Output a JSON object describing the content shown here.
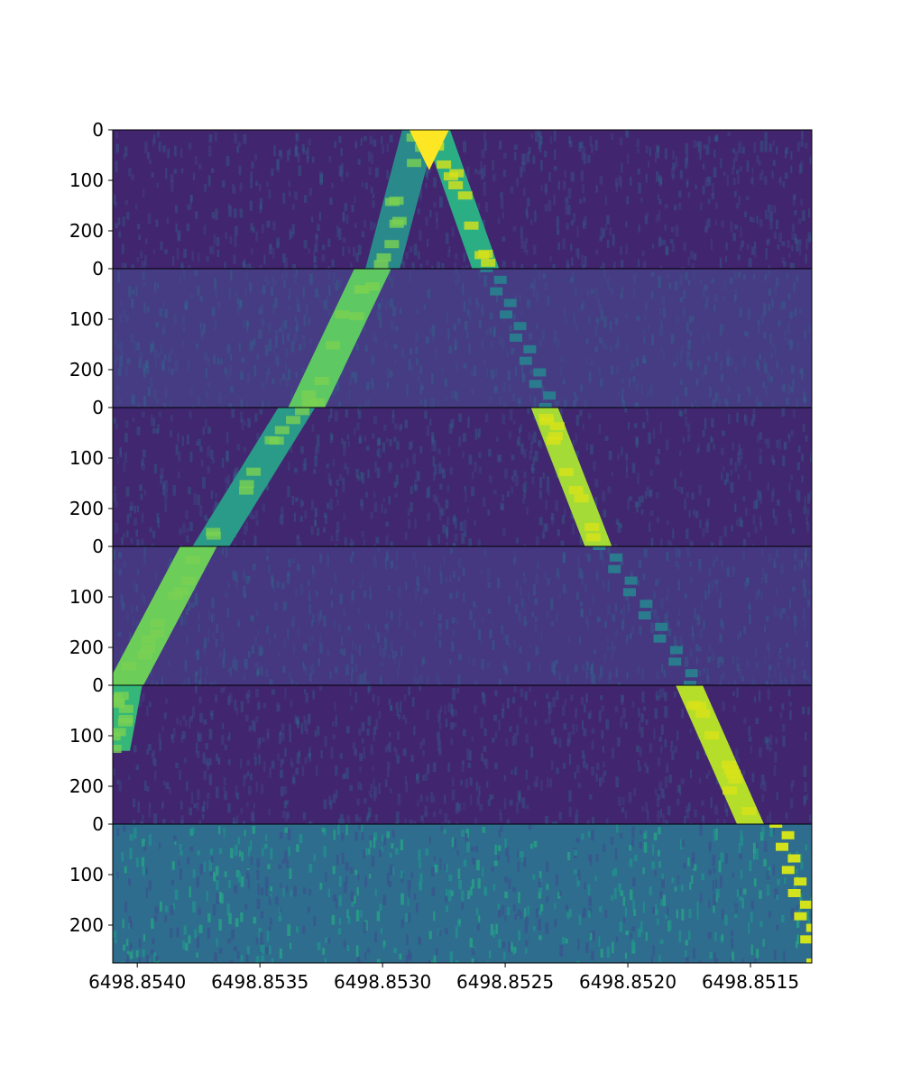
{
  "chart_data": {
    "type": "heatmap",
    "title": "",
    "xlabel": "",
    "ylabel": "",
    "x_axis": {
      "range": [
        6498.8541,
        6498.85125
      ],
      "inverted": true,
      "ticks": [
        6498.854,
        6498.8535,
        6498.853,
        6498.8525,
        6498.852,
        6498.8515
      ],
      "tick_labels": [
        "6498.8540",
        "6498.8535",
        "6498.8530",
        "6498.8525",
        "6498.8520",
        "6498.8515"
      ]
    },
    "panels": [
      {
        "y_range": [
          0,
          275
        ],
        "y_ticks": [
          0,
          100,
          200
        ],
        "y_tick_labels": [
          "0",
          "100",
          "200"
        ],
        "background": "#42256f"
      },
      {
        "y_range": [
          0,
          275
        ],
        "y_ticks": [
          0,
          100,
          200
        ],
        "y_tick_labels": [
          "0",
          "100",
          "200"
        ],
        "background": "#463c83"
      },
      {
        "y_range": [
          0,
          275
        ],
        "y_ticks": [
          0,
          100,
          200
        ],
        "y_tick_labels": [
          "0",
          "100",
          "200"
        ],
        "background": "#41276f"
      },
      {
        "y_range": [
          0,
          275
        ],
        "y_ticks": [
          0,
          100,
          200
        ],
        "y_tick_labels": [
          "0",
          "100",
          "200"
        ],
        "background": "#453780"
      },
      {
        "y_range": [
          0,
          275
        ],
        "y_ticks": [
          0,
          100,
          200
        ],
        "y_tick_labels": [
          "0",
          "100",
          "200"
        ],
        "background": "#42256f"
      },
      {
        "y_range": [
          0,
          275
        ],
        "y_ticks": [
          0,
          100,
          200
        ],
        "y_tick_labels": [
          "0",
          "100",
          "200"
        ],
        "background": "#2e6d8e"
      }
    ],
    "colormap": "viridis",
    "colors": {
      "low": "#440154",
      "mid": "#21918c",
      "high": "#fde725"
    },
    "tracks": [
      {
        "segments": [
          {
            "panel": 0,
            "x_start": 6498.85285,
            "x_end": 6498.853,
            "y_start": 0,
            "y_end": 275,
            "width": 0.00014,
            "color": "#2a8a8b"
          },
          {
            "panel": 1,
            "x_start": 6498.85304,
            "x_end": 6498.85331,
            "y_start": 0,
            "y_end": 275,
            "width": 0.00015,
            "color": "#5ec962"
          },
          {
            "panel": 2,
            "x_start": 6498.85335,
            "x_end": 6498.8537,
            "y_start": 0,
            "y_end": 275,
            "width": 0.00015,
            "color": "#2a9a89"
          },
          {
            "panel": 3,
            "x_start": 6498.85375,
            "x_end": 6498.85405,
            "y_start": 0,
            "y_end": 275,
            "width": 0.00015,
            "color": "#6cce59"
          },
          {
            "panel": 4,
            "x_start": 6498.85405,
            "x_end": 6498.8541,
            "y_start": 0,
            "y_end": 130,
            "width": 0.00014,
            "color": "#35b779"
          }
        ]
      },
      {
        "segments": [
          {
            "panel": 0,
            "x_start": 6498.85278,
            "x_end": 6498.85258,
            "y_start": 0,
            "y_end": 275,
            "width": 0.00011,
            "color": "#2cae84"
          },
          {
            "panel": 1,
            "x_start": 6498.85258,
            "x_end": 6498.85234,
            "y_start": 0,
            "y_end": 275,
            "width": 7e-05,
            "color": "#2b7b8e",
            "dotted": true
          },
          {
            "panel": 2,
            "x_start": 6498.85234,
            "x_end": 6498.85212,
            "y_start": 0,
            "y_end": 275,
            "width": 0.00011,
            "color": "#a5db36"
          },
          {
            "panel": 3,
            "x_start": 6498.85212,
            "x_end": 6498.85175,
            "y_start": 0,
            "y_end": 275,
            "width": 7e-05,
            "color": "#2b7b8e",
            "dotted": true
          },
          {
            "panel": 4,
            "x_start": 6498.85175,
            "x_end": 6498.8515,
            "y_start": 0,
            "y_end": 275,
            "width": 0.00011,
            "color": "#b5de2b"
          },
          {
            "panel": 5,
            "x_start": 6498.8514,
            "x_end": 6498.85125,
            "y_start": 0,
            "y_end": 275,
            "width": 5e-05,
            "color": "#d2e21b",
            "dotted": true
          }
        ]
      }
    ],
    "peak": {
      "panel": 0,
      "x": 6498.85281,
      "y_end": 80,
      "color": "#fde725"
    }
  }
}
